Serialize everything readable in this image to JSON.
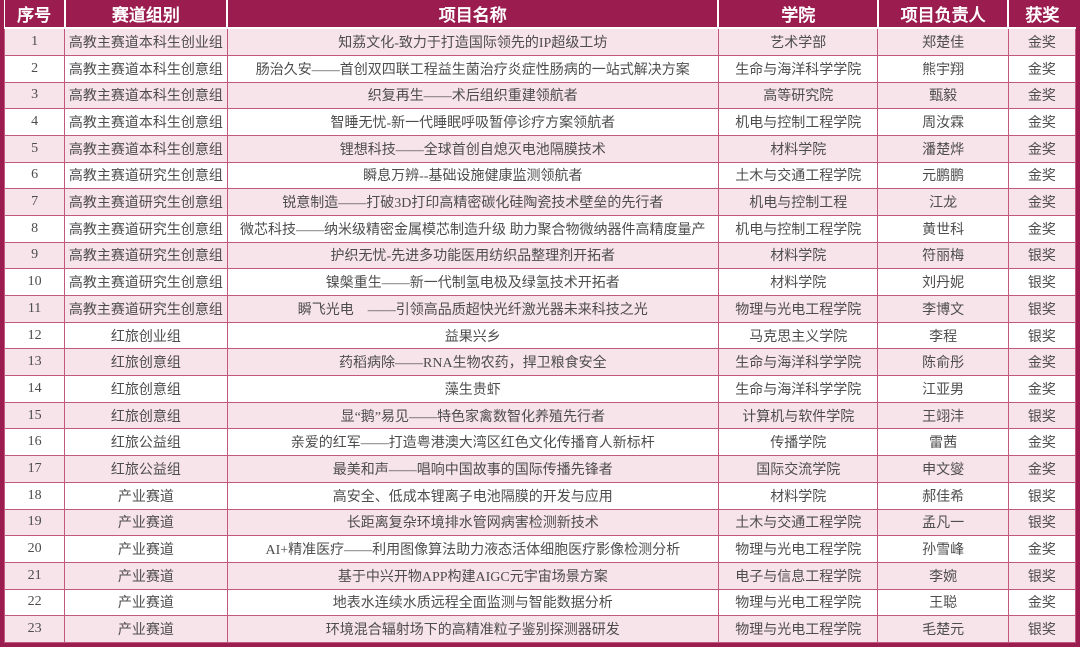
{
  "colors": {
    "header-bg": "#9b1c4f",
    "stripe-pink": "#f7e3ea",
    "row-white": "#ffffff",
    "grid-line": "#c2587c",
    "outer-border": "#9b1c4f",
    "header-text": "#ffffff",
    "body-text": "#4d4d4d"
  },
  "table": {
    "headers": [
      "序号",
      "赛道组别",
      "项目名称",
      "学院",
      "项目负责人",
      "获奖"
    ],
    "rows": [
      [
        "1",
        "高教主赛道本科生创业组",
        "知荔文化-致力于打造国际领先的IP超级工坊",
        "艺术学部",
        "郑楚佳",
        "金奖"
      ],
      [
        "2",
        "高教主赛道本科生创意组",
        "肠治久安——首创双四联工程益生菌治疗炎症性肠病的一站式解决方案",
        "生命与海洋科学学院",
        "熊宇翔",
        "金奖"
      ],
      [
        "3",
        "高教主赛道本科生创意组",
        "织复再生——术后组织重建领航者",
        "高等研究院",
        "甄毅",
        "金奖"
      ],
      [
        "4",
        "高教主赛道本科生创意组",
        "智睡无忧-新一代睡眠呼吸暂停诊疗方案领航者",
        "机电与控制工程学院",
        "周汝霖",
        "金奖"
      ],
      [
        "5",
        "高教主赛道本科生创意组",
        "锂想科技——全球首创自熄灭电池隔膜技术",
        "材料学院",
        "潘楚烨",
        "金奖"
      ],
      [
        "6",
        "高教主赛道研究生创意组",
        "瞬息万辨--基础设施健康监测领航者",
        "土木与交通工程学院",
        "元鹏鹏",
        "金奖"
      ],
      [
        "7",
        "高教主赛道研究生创意组",
        "锐意制造——打破3D打印高精密碳化硅陶瓷技术壁垒的先行者",
        "机电与控制工程",
        "江龙",
        "金奖"
      ],
      [
        "8",
        "高教主赛道研究生创意组",
        "微芯科技——纳米级精密金属模芯制造升级 助力聚合物微纳器件高精度量产",
        "机电与控制工程学院",
        "黄世科",
        "金奖"
      ],
      [
        "9",
        "高教主赛道研究生创意组",
        "护织无忧-先进多功能医用纺织品整理剂开拓者",
        "材料学院",
        "符丽梅",
        "银奖"
      ],
      [
        "10",
        "高教主赛道研究生创意组",
        "镍槃重生——新一代制氢电极及绿氢技术开拓者",
        "材料学院",
        "刘丹妮",
        "银奖"
      ],
      [
        "11",
        "高教主赛道研究生创意组",
        "瞬飞光电　——引领高品质超快光纤激光器未来科技之光",
        "物理与光电工程学院",
        "李博文",
        "银奖"
      ],
      [
        "12",
        "红旅创业组",
        "益果兴乡",
        "马克思主义学院",
        "李程",
        "银奖"
      ],
      [
        "13",
        "红旅创意组",
        "药稻病除——RNA生物农药，捍卫粮食安全",
        "生命与海洋科学学院",
        "陈俞彤",
        "金奖"
      ],
      [
        "14",
        "红旅创意组",
        "藻生贵虾",
        "生命与海洋科学学院",
        "江亚男",
        "金奖"
      ],
      [
        "15",
        "红旅创意组",
        "显“鹅”易见——特色家禽数智化养殖先行者",
        "计算机与软件学院",
        "王翊沣",
        "银奖"
      ],
      [
        "16",
        "红旅公益组",
        "亲爱的红军——打造粤港澳大湾区红色文化传播育人新标杆",
        "传播学院",
        "雷茜",
        "金奖"
      ],
      [
        "17",
        "红旅公益组",
        "最美和声——唱响中国故事的国际传播先锋者",
        "国际交流学院",
        "申文燮",
        "金奖"
      ],
      [
        "18",
        "产业赛道",
        "高安全、低成本锂离子电池隔膜的开发与应用",
        "材料学院",
        "郝佳希",
        "银奖"
      ],
      [
        "19",
        "产业赛道",
        "长距离复杂环境排水管网病害检测新技术",
        "土木与交通工程学院",
        "孟凡一",
        "银奖"
      ],
      [
        "20",
        "产业赛道",
        "AI+精准医疗——利用图像算法助力液态活体细胞医疗影像检测分析",
        "物理与光电工程学院",
        "孙雪峰",
        "金奖"
      ],
      [
        "21",
        "产业赛道",
        "基于中兴开物APP构建AIGC元宇宙场景方案",
        "电子与信息工程学院",
        "李婉",
        "银奖"
      ],
      [
        "22",
        "产业赛道",
        "地表水连续水质远程全面监测与智能数据分析",
        "物理与光电工程学院",
        "王聪",
        "金奖"
      ],
      [
        "23",
        "产业赛道",
        "环境混合辐射场下的高精准粒子鉴别探测器研发",
        "物理与光电工程学院",
        "毛楚元",
        "银奖"
      ]
    ]
  }
}
